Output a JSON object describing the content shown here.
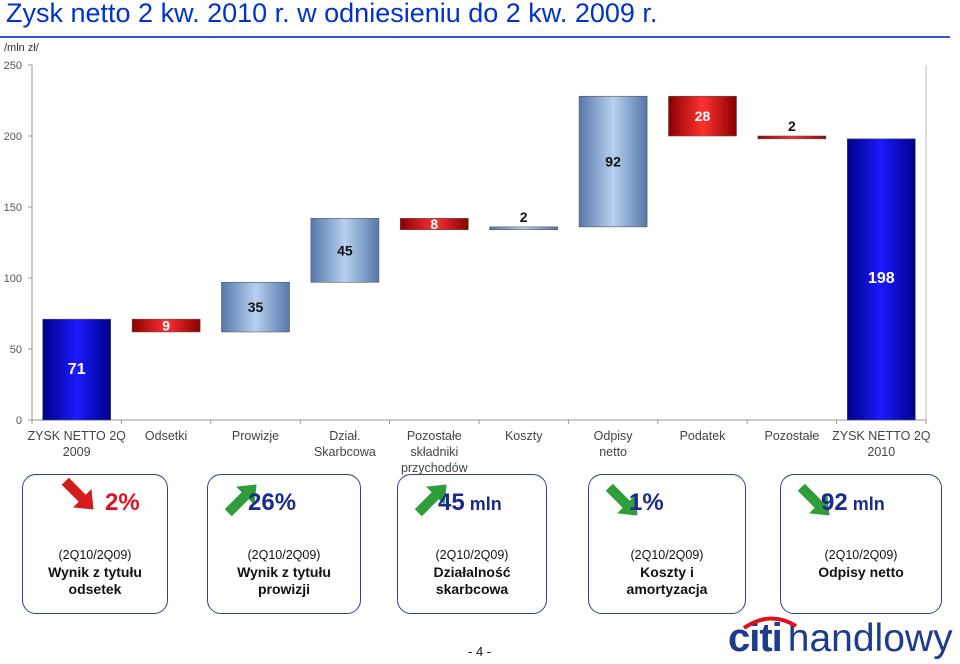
{
  "title": "Zysk netto 2 kw. 2010 r. w odniesieniu do 2 kw. 2009 r.",
  "unit": "/mln zł/",
  "page_number": "- 4 -",
  "logo": {
    "citi": "citi",
    "name": "handlowy"
  },
  "colors": {
    "blue_bar": "#0000cc",
    "red_bar": "#cc0000",
    "light_blue": "#7fa6d6",
    "green_arrow": "#2e9e3a",
    "red_arrow": "#d41c1c",
    "title": "#0033cc"
  },
  "chart_data": {
    "type": "bar",
    "subtype": "waterfall",
    "ylim": [
      0,
      250
    ],
    "yticks": [
      0,
      50,
      100,
      150,
      200,
      250
    ],
    "categories": [
      [
        "ZYSK NETTO 2Q",
        "2009"
      ],
      [
        "Odsetki"
      ],
      [
        "Prowizje"
      ],
      [
        "Dział.",
        "Skarbcowa"
      ],
      [
        "Pozostałe",
        "składniki",
        "przychodów"
      ],
      [
        "Koszty"
      ],
      [
        "Odpisy",
        "netto"
      ],
      [
        "Podatek"
      ],
      [
        "Pozostałe"
      ],
      [
        "ZYSK NETTO 2Q",
        "2010"
      ]
    ],
    "bars": [
      {
        "label": "71",
        "start": 0,
        "end": 71,
        "kind": "total"
      },
      {
        "label": "9",
        "start": 62,
        "end": 71,
        "kind": "decrease"
      },
      {
        "label": "35",
        "start": 62,
        "end": 97,
        "kind": "increase"
      },
      {
        "label": "45",
        "start": 97,
        "end": 142,
        "kind": "increase"
      },
      {
        "label": "8",
        "start": 134,
        "end": 142,
        "kind": "decrease"
      },
      {
        "label": "2",
        "start": 134,
        "end": 136,
        "kind": "increase"
      },
      {
        "label": "92",
        "start": 136,
        "end": 228,
        "kind": "increase"
      },
      {
        "label": "28",
        "start": 200,
        "end": 228,
        "kind": "decrease"
      },
      {
        "label": "2",
        "start": 198,
        "end": 200,
        "kind": "decrease"
      },
      {
        "label": "198",
        "start": 0,
        "end": 198,
        "kind": "total"
      }
    ]
  },
  "cards": [
    {
      "value": "2%",
      "unit": "",
      "value_color": "red",
      "arrow": "down-red",
      "sub": "(2Q10/2Q09)",
      "lines": [
        "Wynik z tytułu",
        "odsetek"
      ]
    },
    {
      "value": "26%",
      "unit": "",
      "value_color": "blue",
      "arrow": "up-green",
      "sub": "(2Q10/2Q09)",
      "lines": [
        "Wynik z tytułu",
        "prowizji"
      ]
    },
    {
      "value": "45",
      "unit": "mln",
      "value_color": "blue",
      "arrow": "up-green",
      "sub": "(2Q10/2Q09)",
      "lines": [
        "Działalność",
        "skarbcowa"
      ]
    },
    {
      "value": "1%",
      "unit": "",
      "value_color": "blue",
      "arrow": "down-green",
      "sub": "(2Q10/2Q09)",
      "lines": [
        "Koszty i",
        "amortyzacja"
      ]
    },
    {
      "value": "92",
      "unit": "mln",
      "value_color": "blue",
      "arrow": "down-green",
      "sub": "(2Q10/2Q09)",
      "lines": [
        "Odpisy netto"
      ]
    }
  ]
}
